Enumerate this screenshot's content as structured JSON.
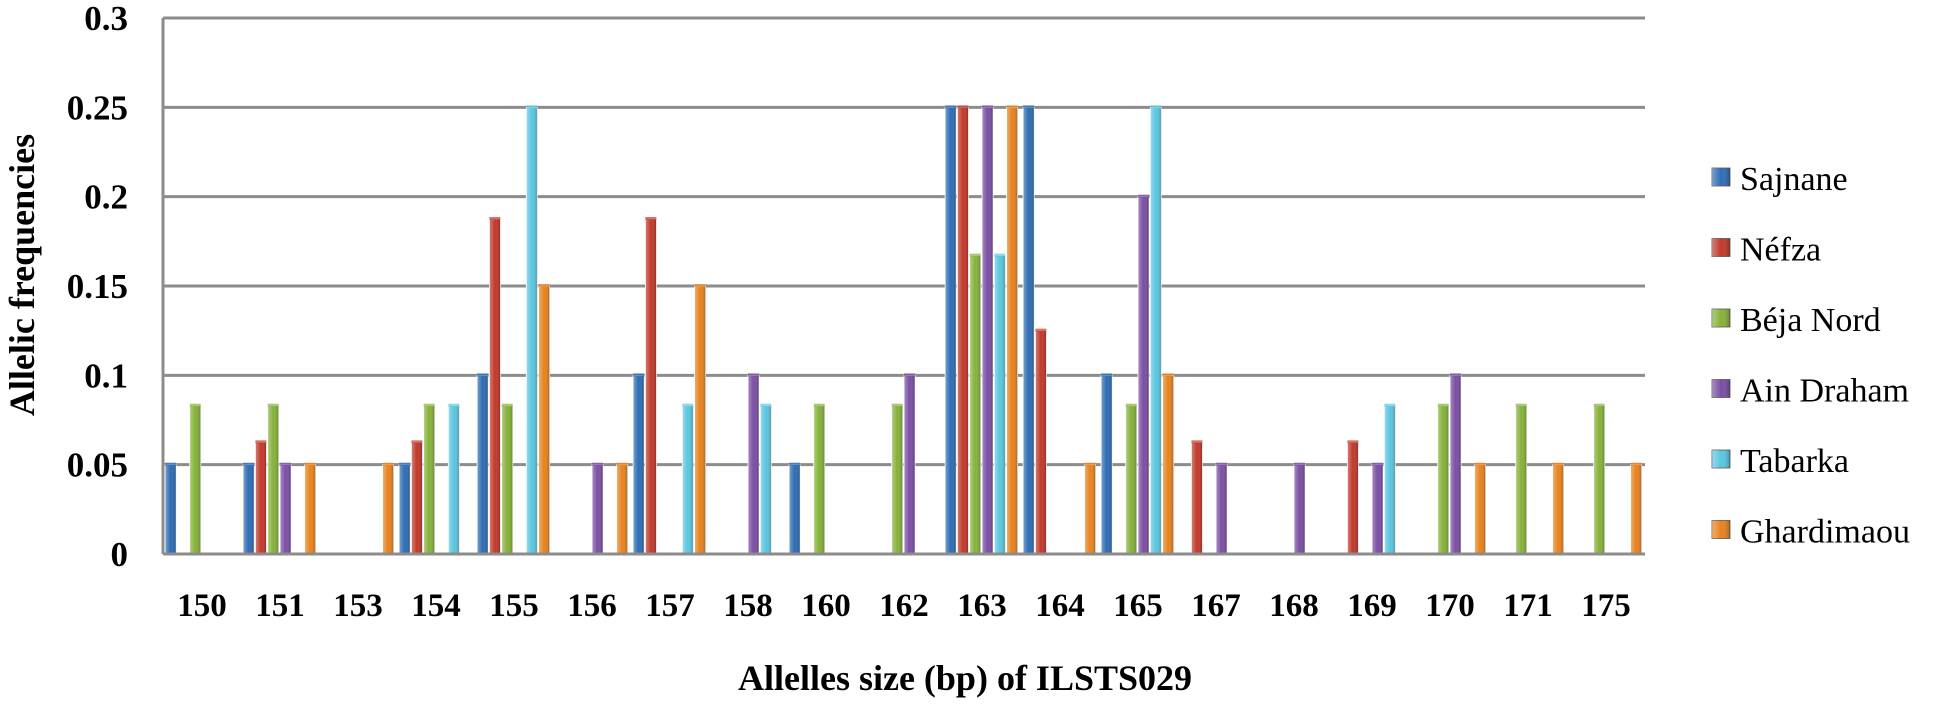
{
  "chart_data": {
    "type": "bar",
    "title": "",
    "xlabel": "Allelles size (bp)  of ILSTS029",
    "ylabel": "Allelic frequencies",
    "ylim": [
      0,
      0.3
    ],
    "yticks": [
      "0",
      "0.05",
      "0.1",
      "0.15",
      "0.2",
      "0.25",
      "0.3"
    ],
    "grid": true,
    "legend_position": "right",
    "categories": [
      "150",
      "151",
      "153",
      "154",
      "155",
      "156",
      "157",
      "158",
      "160",
      "162",
      "163",
      "164",
      "165",
      "167",
      "168",
      "169",
      "170",
      "171",
      "175"
    ],
    "series": [
      {
        "name": "Sajnane",
        "color": "#2e6db4",
        "values": [
          0.05,
          0.05,
          0,
          0.05,
          0.1,
          0,
          0.1,
          0,
          0.05,
          0,
          0.25,
          0.25,
          0.1,
          0,
          0,
          0,
          0,
          0,
          0
        ]
      },
      {
        "name": "Néfza",
        "color": "#c0392b",
        "values": [
          0,
          0.0625,
          0,
          0.0625,
          0.1875,
          0,
          0.1875,
          0,
          0,
          0,
          0.25,
          0.125,
          0,
          0.0625,
          0,
          0.0625,
          0,
          0,
          0
        ]
      },
      {
        "name": "Béja Nord",
        "color": "#86b23a",
        "values": [
          0.083,
          0.083,
          0,
          0.083,
          0.083,
          0,
          0,
          0,
          0.083,
          0.083,
          0.167,
          0,
          0.083,
          0,
          0,
          0,
          0.083,
          0.083,
          0.083
        ]
      },
      {
        "name": "Ain Draham",
        "color": "#7a4fa3",
        "values": [
          0,
          0.05,
          0,
          0,
          0,
          0.05,
          0,
          0.1,
          0,
          0.1,
          0.25,
          0,
          0.2,
          0.05,
          0.05,
          0.05,
          0.1,
          0,
          0
        ]
      },
      {
        "name": "Tabarka",
        "color": "#5bc6e0",
        "values": [
          0,
          0,
          0,
          0.083,
          0.25,
          0,
          0.083,
          0.083,
          0,
          0,
          0.167,
          0,
          0.25,
          0,
          0,
          0.083,
          0,
          0,
          0
        ]
      },
      {
        "name": "Ghardimaou",
        "color": "#e8821e",
        "values": [
          0,
          0.05,
          0.05,
          0,
          0.15,
          0.05,
          0.15,
          0,
          0,
          0,
          0.25,
          0.05,
          0.1,
          0,
          0,
          0,
          0.05,
          0.05,
          0.05
        ]
      }
    ]
  }
}
